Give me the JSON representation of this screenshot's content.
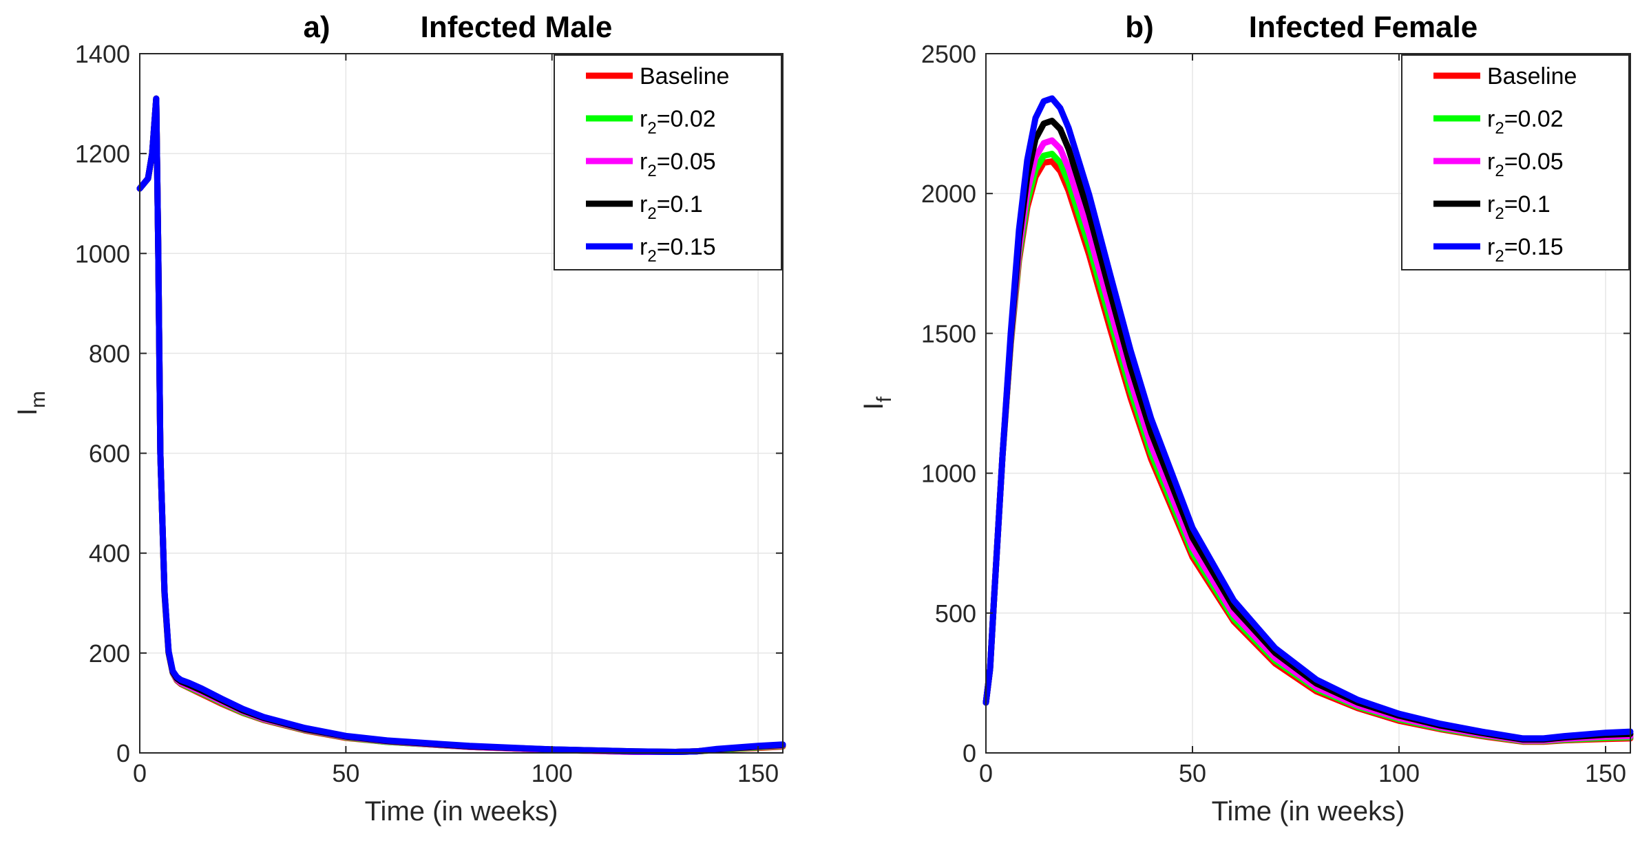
{
  "chart_data": [
    {
      "type": "line",
      "panel_letter": "a)",
      "title": "Infected Male",
      "xlabel": "Time (in weeks)",
      "ylabel_main": "I",
      "ylabel_sub": "m",
      "xlim": [
        0,
        156
      ],
      "ylim": [
        0,
        1400
      ],
      "xticks": [
        0,
        50,
        100,
        150
      ],
      "yticks": [
        0,
        200,
        400,
        600,
        800,
        1000,
        1200,
        1400
      ],
      "grid": true,
      "legend_position": "top-right",
      "legend": [
        {
          "label": "Baseline",
          "color": "#ff0000"
        },
        {
          "label": "r2=0.02",
          "prefix": "r",
          "sub": "2",
          "suffix": "=0.02",
          "color": "#00ff00"
        },
        {
          "label": "r2=0.05",
          "prefix": "r",
          "sub": "2",
          "suffix": "=0.05",
          "color": "#ff00ff"
        },
        {
          "label": "r2=0.1",
          "prefix": "r",
          "sub": "2",
          "suffix": "=0.1",
          "color": "#000000"
        },
        {
          "label": "r2=0.15",
          "prefix": "r",
          "sub": "2",
          "suffix": "=0.15",
          "color": "#0000ff"
        }
      ],
      "series": [
        {
          "name": "Baseline",
          "color": "#ff0000",
          "x": [
            0,
            2,
            3,
            4,
            4.5,
            5,
            6,
            7,
            8,
            9,
            10,
            12,
            15,
            20,
            25,
            30,
            40,
            50,
            60,
            80,
            100,
            120,
            130,
            135,
            140,
            150,
            156
          ],
          "y": [
            1130,
            1150,
            1200,
            1310,
            1000,
            600,
            320,
            200,
            160,
            145,
            138,
            130,
            118,
            98,
            80,
            66,
            45,
            30,
            22,
            12,
            6,
            2,
            2,
            3,
            6,
            10,
            13
          ]
        },
        {
          "name": "r2=0.02",
          "color": "#00ff00",
          "x": [
            0,
            2,
            3,
            4,
            4.5,
            5,
            6,
            7,
            8,
            9,
            10,
            12,
            15,
            20,
            25,
            30,
            40,
            50,
            60,
            80,
            100,
            120,
            130,
            135,
            140,
            150,
            156
          ],
          "y": [
            1130,
            1150,
            1200,
            1310,
            1000,
            600,
            320,
            200,
            160,
            146,
            139,
            131,
            120,
            100,
            81,
            67,
            46,
            31,
            22,
            12,
            6,
            2,
            2,
            3,
            6,
            11,
            14
          ]
        },
        {
          "name": "r2=0.05",
          "color": "#ff00ff",
          "x": [
            0,
            2,
            3,
            4,
            4.5,
            5,
            6,
            7,
            8,
            9,
            10,
            12,
            15,
            20,
            25,
            30,
            40,
            50,
            60,
            80,
            100,
            120,
            130,
            135,
            140,
            150,
            156
          ],
          "y": [
            1130,
            1150,
            1200,
            1310,
            1000,
            600,
            322,
            201,
            161,
            147,
            140,
            133,
            122,
            102,
            83,
            68,
            47,
            32,
            23,
            12,
            6,
            2,
            2,
            3,
            7,
            12,
            15
          ]
        },
        {
          "name": "r2=0.1",
          "color": "#000000",
          "x": [
            0,
            2,
            3,
            4,
            4.5,
            5,
            6,
            7,
            8,
            9,
            10,
            12,
            15,
            20,
            25,
            30,
            40,
            50,
            60,
            80,
            100,
            120,
            130,
            135,
            140,
            150,
            156
          ],
          "y": [
            1130,
            1150,
            1200,
            1310,
            1000,
            600,
            323,
            202,
            162,
            149,
            143,
            136,
            125,
            105,
            85,
            70,
            48,
            33,
            24,
            13,
            7,
            3,
            2,
            3,
            7,
            13,
            16
          ]
        },
        {
          "name": "r2=0.15",
          "color": "#0000ff",
          "x": [
            0,
            2,
            3,
            4,
            4.5,
            5,
            6,
            7,
            8,
            9,
            10,
            12,
            15,
            20,
            25,
            30,
            40,
            50,
            60,
            80,
            100,
            120,
            130,
            135,
            140,
            150,
            156
          ],
          "y": [
            1130,
            1150,
            1200,
            1310,
            1000,
            600,
            325,
            204,
            164,
            152,
            146,
            140,
            129,
            108,
            88,
            72,
            50,
            34,
            25,
            14,
            7,
            3,
            2,
            3,
            8,
            14,
            17
          ]
        }
      ]
    },
    {
      "type": "line",
      "panel_letter": "b)",
      "title": "Infected Female",
      "xlabel": "Time (in weeks)",
      "ylabel_main": "I",
      "ylabel_sub": "f",
      "xlim": [
        0,
        156
      ],
      "ylim": [
        0,
        2500
      ],
      "xticks": [
        0,
        50,
        100,
        150
      ],
      "yticks": [
        0,
        500,
        1000,
        1500,
        2000,
        2500
      ],
      "grid": true,
      "legend_position": "top-right",
      "legend": [
        {
          "label": "Baseline",
          "color": "#ff0000"
        },
        {
          "label": "r2=0.02",
          "prefix": "r",
          "sub": "2",
          "suffix": "=0.02",
          "color": "#00ff00"
        },
        {
          "label": "r2=0.05",
          "prefix": "r",
          "sub": "2",
          "suffix": "=0.05",
          "color": "#ff00ff"
        },
        {
          "label": "r2=0.1",
          "prefix": "r",
          "sub": "2",
          "suffix": "=0.1",
          "color": "#000000"
        },
        {
          "label": "r2=0.15",
          "prefix": "r",
          "sub": "2",
          "suffix": "=0.15",
          "color": "#0000ff"
        }
      ],
      "series": [
        {
          "name": "Baseline",
          "color": "#ff0000",
          "x": [
            0,
            1,
            2,
            4,
            6,
            8,
            10,
            12,
            14,
            16,
            18,
            20,
            25,
            30,
            35,
            40,
            50,
            60,
            70,
            80,
            90,
            100,
            110,
            120,
            130,
            135,
            140,
            150,
            156
          ],
          "y": [
            180,
            300,
            560,
            1060,
            1460,
            1760,
            1950,
            2060,
            2110,
            2115,
            2080,
            2010,
            1780,
            1520,
            1270,
            1050,
            700,
            470,
            320,
            220,
            160,
            115,
            85,
            60,
            40,
            40,
            45,
            50,
            52
          ]
        },
        {
          "name": "r2=0.02",
          "color": "#00ff00",
          "x": [
            0,
            1,
            2,
            4,
            6,
            8,
            10,
            12,
            14,
            16,
            18,
            20,
            25,
            30,
            35,
            40,
            50,
            60,
            70,
            80,
            90,
            100,
            110,
            120,
            130,
            135,
            140,
            150,
            156
          ],
          "y": [
            180,
            300,
            560,
            1060,
            1465,
            1775,
            1970,
            2085,
            2135,
            2142,
            2110,
            2040,
            1810,
            1550,
            1295,
            1070,
            715,
            480,
            330,
            228,
            165,
            120,
            88,
            63,
            42,
            42,
            47,
            54,
            56
          ]
        },
        {
          "name": "r2=0.05",
          "color": "#ff00ff",
          "x": [
            0,
            1,
            2,
            4,
            6,
            8,
            10,
            12,
            14,
            16,
            18,
            20,
            25,
            30,
            35,
            40,
            50,
            60,
            70,
            80,
            90,
            100,
            110,
            120,
            130,
            135,
            140,
            150,
            156
          ],
          "y": [
            180,
            300,
            560,
            1060,
            1475,
            1795,
            2005,
            2130,
            2180,
            2190,
            2160,
            2090,
            1855,
            1590,
            1330,
            1100,
            735,
            495,
            340,
            235,
            170,
            125,
            92,
            66,
            44,
            44,
            50,
            58,
            60
          ]
        },
        {
          "name": "r2=0.1",
          "color": "#000000",
          "x": [
            0,
            1,
            2,
            4,
            6,
            8,
            10,
            12,
            14,
            16,
            18,
            20,
            25,
            30,
            35,
            40,
            50,
            60,
            70,
            80,
            90,
            100,
            110,
            120,
            130,
            135,
            140,
            150,
            156
          ],
          "y": [
            180,
            300,
            560,
            1060,
            1485,
            1830,
            2060,
            2195,
            2250,
            2260,
            2230,
            2160,
            1925,
            1650,
            1380,
            1145,
            770,
            520,
            358,
            248,
            180,
            133,
            98,
            71,
            48,
            48,
            55,
            65,
            68
          ]
        },
        {
          "name": "r2=0.15",
          "color": "#0000ff",
          "x": [
            0,
            1,
            2,
            4,
            6,
            8,
            10,
            12,
            14,
            16,
            18,
            20,
            25,
            30,
            35,
            40,
            50,
            60,
            70,
            80,
            90,
            100,
            110,
            120,
            130,
            135,
            140,
            150,
            156
          ],
          "y": [
            180,
            300,
            560,
            1060,
            1500,
            1870,
            2120,
            2270,
            2330,
            2340,
            2305,
            2235,
            1995,
            1715,
            1440,
            1195,
            805,
            545,
            375,
            262,
            190,
            140,
            104,
            76,
            52,
            52,
            60,
            72,
            76
          ]
        }
      ]
    }
  ]
}
